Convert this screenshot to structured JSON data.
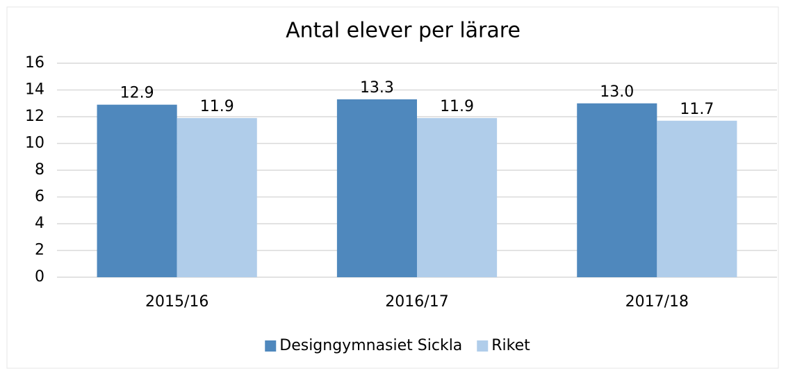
{
  "chart_data": {
    "type": "bar",
    "title": "Antal elever per lärare",
    "categories": [
      "2015/16",
      "2016/17",
      "2017/18"
    ],
    "series": [
      {
        "name": "Designgymnasiet Sickla",
        "color": "#4f88bd",
        "values": [
          12.9,
          13.3,
          13.0
        ],
        "value_labels": [
          "12.9",
          "13.3",
          "13.0"
        ]
      },
      {
        "name": "Riket",
        "color": "#b0cdea",
        "values": [
          11.9,
          11.9,
          11.7
        ],
        "value_labels": [
          "11.9",
          "11.9",
          "11.7"
        ]
      }
    ],
    "ylim": [
      0,
      16
    ],
    "yticks": [
      0,
      2,
      4,
      6,
      8,
      10,
      12,
      14,
      16
    ],
    "grid": true,
    "legend": "bottom"
  }
}
